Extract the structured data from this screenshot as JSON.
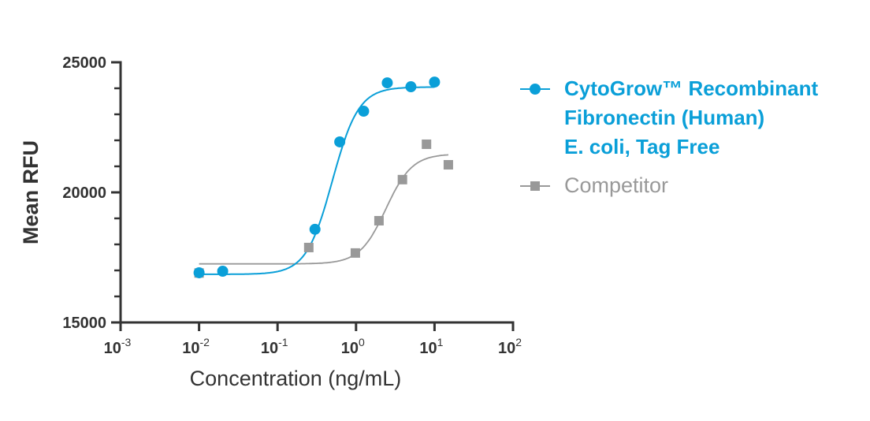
{
  "chart_data": {
    "type": "scatter",
    "title": "",
    "xlabel": "Concentration (ng/mL)",
    "ylabel": "Mean RFU",
    "xscale": "log",
    "xlim": [
      0.001,
      100
    ],
    "ylim": [
      15000,
      25000
    ],
    "x_ticks": [
      {
        "base": "10",
        "exp": "-3",
        "value": 0.001
      },
      {
        "base": "10",
        "exp": "-2",
        "value": 0.01
      },
      {
        "base": "10",
        "exp": "-1",
        "value": 0.1
      },
      {
        "base": "10",
        "exp": "0",
        "value": 1
      },
      {
        "base": "10",
        "exp": "1",
        "value": 10
      },
      {
        "base": "10",
        "exp": "2",
        "value": 100
      }
    ],
    "y_ticks": [
      "15000",
      "20000",
      "25000"
    ],
    "y_tick_values": [
      15000,
      20000,
      25000
    ],
    "y_minor_step": 1000,
    "grid": false,
    "legend_position": "right",
    "series": [
      {
        "name": "CytoGrow™ Recombinant Fibronectin (Human) E. coli, Tag Free",
        "legend_lines": [
          "CytoGrow™ Recombinant",
          "Fibronectin (Human)",
          "E. coli, Tag Free"
        ],
        "color": "#0a9fd8",
        "marker": "circle",
        "x": [
          0.01,
          0.02,
          0.3,
          0.62,
          1.25,
          2.5,
          5,
          10
        ],
        "y": [
          16910,
          16970,
          18580,
          21940,
          23120,
          24210,
          24060,
          24240
        ],
        "fit": {
          "model": "4PL",
          "bottom": 16850,
          "top": 24050,
          "ec50": 0.5,
          "hill": 2.6,
          "x_range": [
            0.01,
            10
          ]
        }
      },
      {
        "name": "Competitor",
        "legend_lines": [
          "Competitor"
        ],
        "color": "#999999",
        "marker": "square",
        "x": [
          0.01,
          0.25,
          0.98,
          1.96,
          3.9,
          7.9,
          15
        ],
        "y": [
          16900,
          17880,
          17670,
          18910,
          20490,
          21850,
          21060
        ],
        "fit": {
          "model": "4PL",
          "bottom": 17250,
          "top": 21480,
          "ec50": 2.4,
          "hill": 2.6,
          "x_range": [
            0.01,
            15
          ]
        }
      }
    ]
  }
}
